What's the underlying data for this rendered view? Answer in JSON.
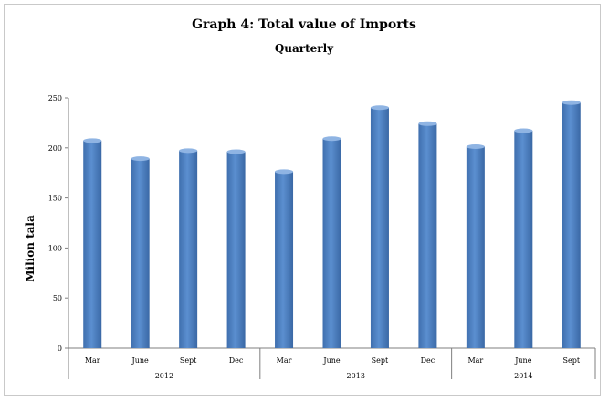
{
  "chart_data": {
    "type": "bar",
    "title": "Graph 4: Total value of Imports",
    "subtitle": "Quarterly",
    "ylabel": "Milion tala",
    "xlabel": "",
    "ylim": [
      0,
      250
    ],
    "yticks": [
      0,
      50,
      100,
      150,
      200,
      250
    ],
    "grid": false,
    "legend": "none",
    "bar_color": "#4f81bd",
    "categories": [
      "Mar",
      "June",
      "Sept",
      "Dec",
      "Mar",
      "June",
      "Sept",
      "Dec",
      "Mar",
      "June",
      "Sept"
    ],
    "groups": [
      {
        "label": "2012",
        "count": 4
      },
      {
        "label": "2013",
        "count": 4
      },
      {
        "label": "2014",
        "count": 3
      }
    ],
    "values": [
      209,
      191,
      199,
      198,
      178,
      211,
      242,
      226,
      203,
      219,
      247
    ]
  }
}
